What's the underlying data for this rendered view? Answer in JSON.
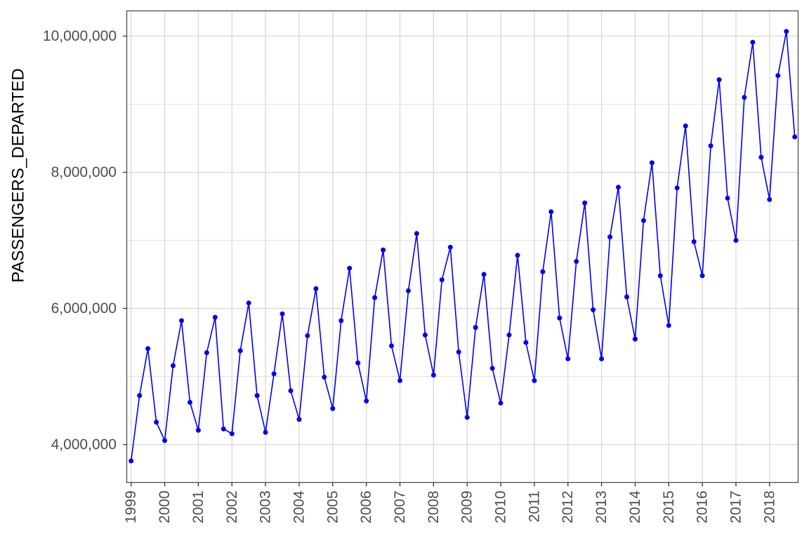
{
  "chart_data": {
    "type": "line",
    "title": "",
    "xlabel": "",
    "ylabel": "PASSENGERS_DEPARTED",
    "legend": false,
    "grid": true,
    "point_style": "filled-circle",
    "frequency": "quarterly",
    "start_period": "1999 Q1",
    "end_period": "2018 Q4",
    "x_tick_labels": [
      "1999",
      "2000",
      "2001",
      "2002",
      "2003",
      "2004",
      "2005",
      "2006",
      "2007",
      "2008",
      "2009",
      "2010",
      "2011",
      "2012",
      "2013",
      "2014",
      "2015",
      "2016",
      "2017",
      "2018"
    ],
    "y_tick_labels": [
      "4,000,000",
      "6,000,000",
      "8,000,000",
      "10,000,000"
    ],
    "y_major_ticks": [
      4000000,
      6000000,
      8000000,
      10000000
    ],
    "y_minor_gridlines": [
      5000000,
      7000000,
      9000000
    ],
    "xlim": [
      1998.87,
      2018.85
    ],
    "ylim": [
      3443000,
      10371000
    ],
    "series": [
      {
        "name": "PASSENGERS_DEPARTED",
        "color": "#0000EE",
        "values": [
          3760000,
          4720000,
          5410000,
          4330000,
          4060000,
          5160000,
          5820000,
          4620000,
          4210000,
          5350000,
          5870000,
          4230000,
          4160000,
          5380000,
          6080000,
          4720000,
          4180000,
          5040000,
          5920000,
          4790000,
          4370000,
          5600000,
          6290000,
          4990000,
          4530000,
          5820000,
          6590000,
          5200000,
          4640000,
          6160000,
          6860000,
          5450000,
          4940000,
          6260000,
          7100000,
          5610000,
          5020000,
          6420000,
          6900000,
          5360000,
          4400000,
          5720000,
          6500000,
          5120000,
          4610000,
          5610000,
          6780000,
          5500000,
          4940000,
          6540000,
          7420000,
          5860000,
          5260000,
          6690000,
          7550000,
          5980000,
          5260000,
          7050000,
          7780000,
          6170000,
          5550000,
          7290000,
          8140000,
          6480000,
          5750000,
          7770000,
          8680000,
          6980000,
          6480000,
          8390000,
          9360000,
          7620000,
          7000000,
          9100000,
          9910000,
          8220000,
          7600000,
          9420000,
          10070000,
          8520000
        ]
      }
    ]
  },
  "colors": {
    "line": "#0000EE",
    "point": "#0000EE",
    "gridline_major": "#d6d6d6",
    "gridline_minor": "#e2e2e2",
    "panel_border": "#4d4d4d",
    "tick_mark": "#333333",
    "tick_label": "#4d4d4d",
    "axis_title": "#000000",
    "panel_background": "#ffffff",
    "figure_background": "#ffffff"
  }
}
